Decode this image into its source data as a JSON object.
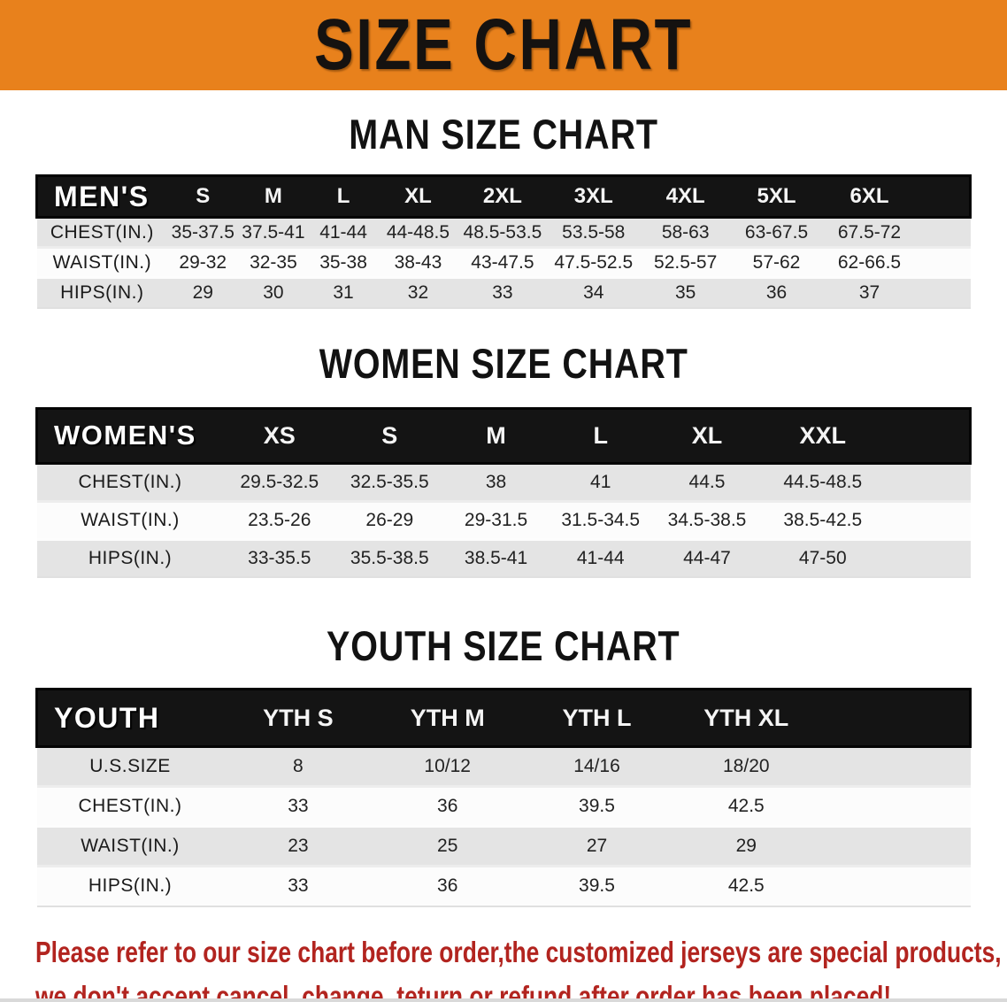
{
  "banner": {
    "title": "SIZE CHART",
    "bg_color": "#e8811c",
    "text_color": "#151210"
  },
  "sections": [
    {
      "id": "men",
      "heading": "MAN SIZE CHART",
      "table": {
        "corner_label": "MEN'S",
        "columns": [
          "S",
          "M",
          "L",
          "XL",
          "2XL",
          "3XL",
          "4XL",
          "5XL",
          "6XL"
        ],
        "rows": [
          {
            "label": "CHEST(IN.)",
            "values": [
              "35-37.5",
              "37.5-41",
              "41-44",
              "44-48.5",
              "48.5-53.5",
              "53.5-58",
              "58-63",
              "63-67.5",
              "67.5-72"
            ]
          },
          {
            "label": "WAIST(IN.)",
            "values": [
              "29-32",
              "32-35",
              "35-38",
              "38-43",
              "43-47.5",
              "47.5-52.5",
              "52.5-57",
              "57-62",
              "62-66.5"
            ]
          },
          {
            "label": "HIPS(IN.)",
            "values": [
              "29",
              "30",
              "31",
              "32",
              "33",
              "34",
              "35",
              "36",
              "37"
            ]
          }
        ]
      }
    },
    {
      "id": "women",
      "heading": "WOMEN SIZE CHART",
      "table": {
        "corner_label": "WOMEN'S",
        "columns": [
          "XS",
          "S",
          "M",
          "L",
          "XL",
          "XXL"
        ],
        "rows": [
          {
            "label": "CHEST(IN.)",
            "values": [
              "29.5-32.5",
              "32.5-35.5",
              "38",
              "41",
              "44.5",
              "44.5-48.5"
            ]
          },
          {
            "label": "WAIST(IN.)",
            "values": [
              "23.5-26",
              "26-29",
              "29-31.5",
              "31.5-34.5",
              "34.5-38.5",
              "38.5-42.5"
            ]
          },
          {
            "label": "HIPS(IN.)",
            "values": [
              "33-35.5",
              "35.5-38.5",
              "38.5-41",
              "41-44",
              "44-47",
              "47-50"
            ]
          }
        ]
      }
    },
    {
      "id": "youth",
      "heading": "YOUTH SIZE CHART",
      "table": {
        "corner_label": "YOUTH",
        "columns": [
          "YTH S",
          "YTH M",
          "YTH L",
          "YTH XL"
        ],
        "rows": [
          {
            "label": "U.S.SIZE",
            "values": [
              "8",
              "10/12",
              "14/16",
              "18/20"
            ]
          },
          {
            "label": "CHEST(IN.)",
            "values": [
              "33",
              "36",
              "39.5",
              "42.5"
            ]
          },
          {
            "label": "WAIST(IN.)",
            "values": [
              "23",
              "25",
              "27",
              "29"
            ]
          },
          {
            "label": "HIPS(IN.)",
            "values": [
              "33",
              "36",
              "39.5",
              "42.5"
            ]
          }
        ]
      }
    }
  ],
  "footnote": {
    "color": "#b2241f",
    "lines": [
      "Please refer to our size chart before order,the customized jerseys are special products,",
      "we don't accept cancel, change, teturn or refund after order has been placed!"
    ]
  }
}
